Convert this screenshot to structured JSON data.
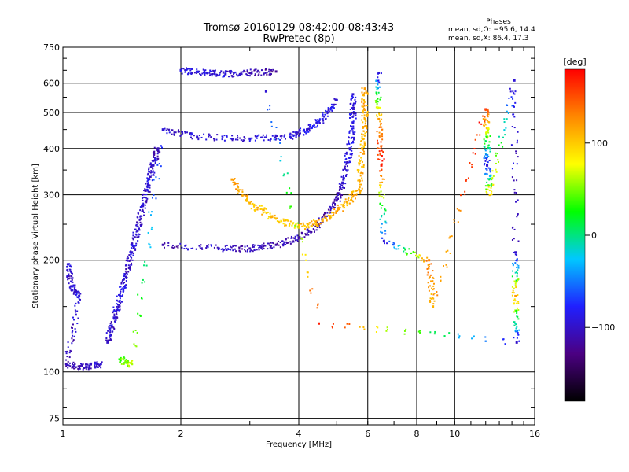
{
  "header": {
    "title": "Tromsø 20160129 08:42:00-08:43:43",
    "subtitle": "RwPretec (8p)",
    "stats_heading": "Phases",
    "stats_o": "mean, sd,O: −95.6, 14.4",
    "stats_x": "mean, sd,X:  86.4, 17.3"
  },
  "chart_data": {
    "type": "scatter",
    "xlabel": "Frequency [MHz]",
    "ylabel": "Stationary phase Virtual Height [km]",
    "x_scale": "log",
    "y_scale": "log",
    "xlim": [
      1,
      16
    ],
    "ylim": [
      72,
      750
    ],
    "x_ticks": [
      1,
      2,
      4,
      6,
      8,
      10,
      16
    ],
    "y_ticks": [
      75,
      100,
      200,
      300,
      400,
      500,
      600,
      750
    ],
    "grid": true,
    "colorbar": {
      "label": "[deg]",
      "range": [
        -180,
        180
      ],
      "ticks": [
        100,
        0,
        -100
      ],
      "colors": [
        "#000000",
        "#4b0082",
        "#2020ff",
        "#00c8ff",
        "#00ff00",
        "#ffff00",
        "#ff8800",
        "#ff0000"
      ]
    },
    "series": [
      {
        "values": [
          [
            1.03,
            195,
            -95
          ],
          [
            1.05,
            170,
            -100
          ],
          [
            1.1,
            160,
            -90
          ],
          [
            1.02,
            105,
            -110
          ],
          [
            1.15,
            103,
            -100
          ],
          [
            1.25,
            105,
            -95
          ]
        ]
      },
      {
        "values": [
          [
            1.3,
            120,
            -100
          ],
          [
            1.35,
            140,
            -95
          ],
          [
            1.4,
            160,
            -90
          ],
          [
            1.45,
            180,
            -100
          ],
          [
            1.5,
            210,
            -95
          ],
          [
            1.55,
            240,
            -100
          ],
          [
            1.6,
            280,
            -100
          ],
          [
            1.65,
            320,
            -95
          ],
          [
            1.7,
            360,
            -100
          ],
          [
            1.75,
            400,
            -105
          ]
        ]
      },
      {
        "values": [
          [
            1.4,
            108,
            40
          ],
          [
            1.5,
            105,
            60
          ],
          [
            1.8,
            450,
            -95
          ],
          [
            2.2,
            430,
            -95
          ],
          [
            3.0,
            425,
            -95
          ],
          [
            3.8,
            430,
            -90
          ],
          [
            4.2,
            450,
            -90
          ],
          [
            4.6,
            480,
            -85
          ],
          [
            5.0,
            540,
            -95
          ]
        ]
      },
      {
        "values": [
          [
            1.8,
            220,
            -110
          ],
          [
            2.5,
            215,
            -100
          ],
          [
            3.0,
            215,
            -110
          ],
          [
            3.5,
            220,
            -110
          ],
          [
            4.0,
            230,
            -110
          ],
          [
            4.5,
            250,
            -115
          ],
          [
            5.0,
            290,
            -110
          ],
          [
            5.2,
            330,
            -100
          ],
          [
            5.4,
            400,
            -95
          ],
          [
            5.5,
            470,
            -90
          ],
          [
            5.5,
            560,
            -95
          ]
        ]
      },
      {
        "values": [
          [
            2.7,
            330,
            120
          ],
          [
            3.0,
            285,
            110
          ],
          [
            3.4,
            262,
            100
          ],
          [
            4.0,
            245,
            100
          ],
          [
            4.6,
            255,
            110
          ],
          [
            5.2,
            280,
            110
          ],
          [
            5.7,
            310,
            110
          ],
          [
            5.8,
            400,
            110
          ],
          [
            5.9,
            480,
            110
          ],
          [
            5.9,
            580,
            120
          ]
        ]
      },
      {
        "values": [
          [
            2.0,
            650,
            -95
          ],
          [
            2.3,
            640,
            -85
          ],
          [
            2.6,
            635,
            -95
          ],
          [
            3.0,
            640,
            -110
          ],
          [
            3.5,
            645,
            -120
          ]
        ]
      },
      {
        "values": [
          [
            6.4,
            640,
            -95
          ],
          [
            6.4,
            480,
            120
          ],
          [
            6.5,
            360,
            170
          ],
          [
            6.6,
            225,
            -95
          ],
          [
            8.6,
            200,
            130
          ],
          [
            8.8,
            150,
            110
          ],
          [
            12.0,
            510,
            170
          ],
          [
            12.1,
            430,
            50
          ],
          [
            12.1,
            360,
            -95
          ],
          [
            12.3,
            300,
            100
          ],
          [
            14.2,
            610,
            -95
          ],
          [
            14.3,
            210,
            -100
          ],
          [
            14.3,
            160,
            120
          ],
          [
            14.4,
            120,
            -100
          ],
          [
            4.5,
            135,
            170
          ],
          [
            3.3,
            570,
            -95
          ]
        ]
      }
    ]
  }
}
